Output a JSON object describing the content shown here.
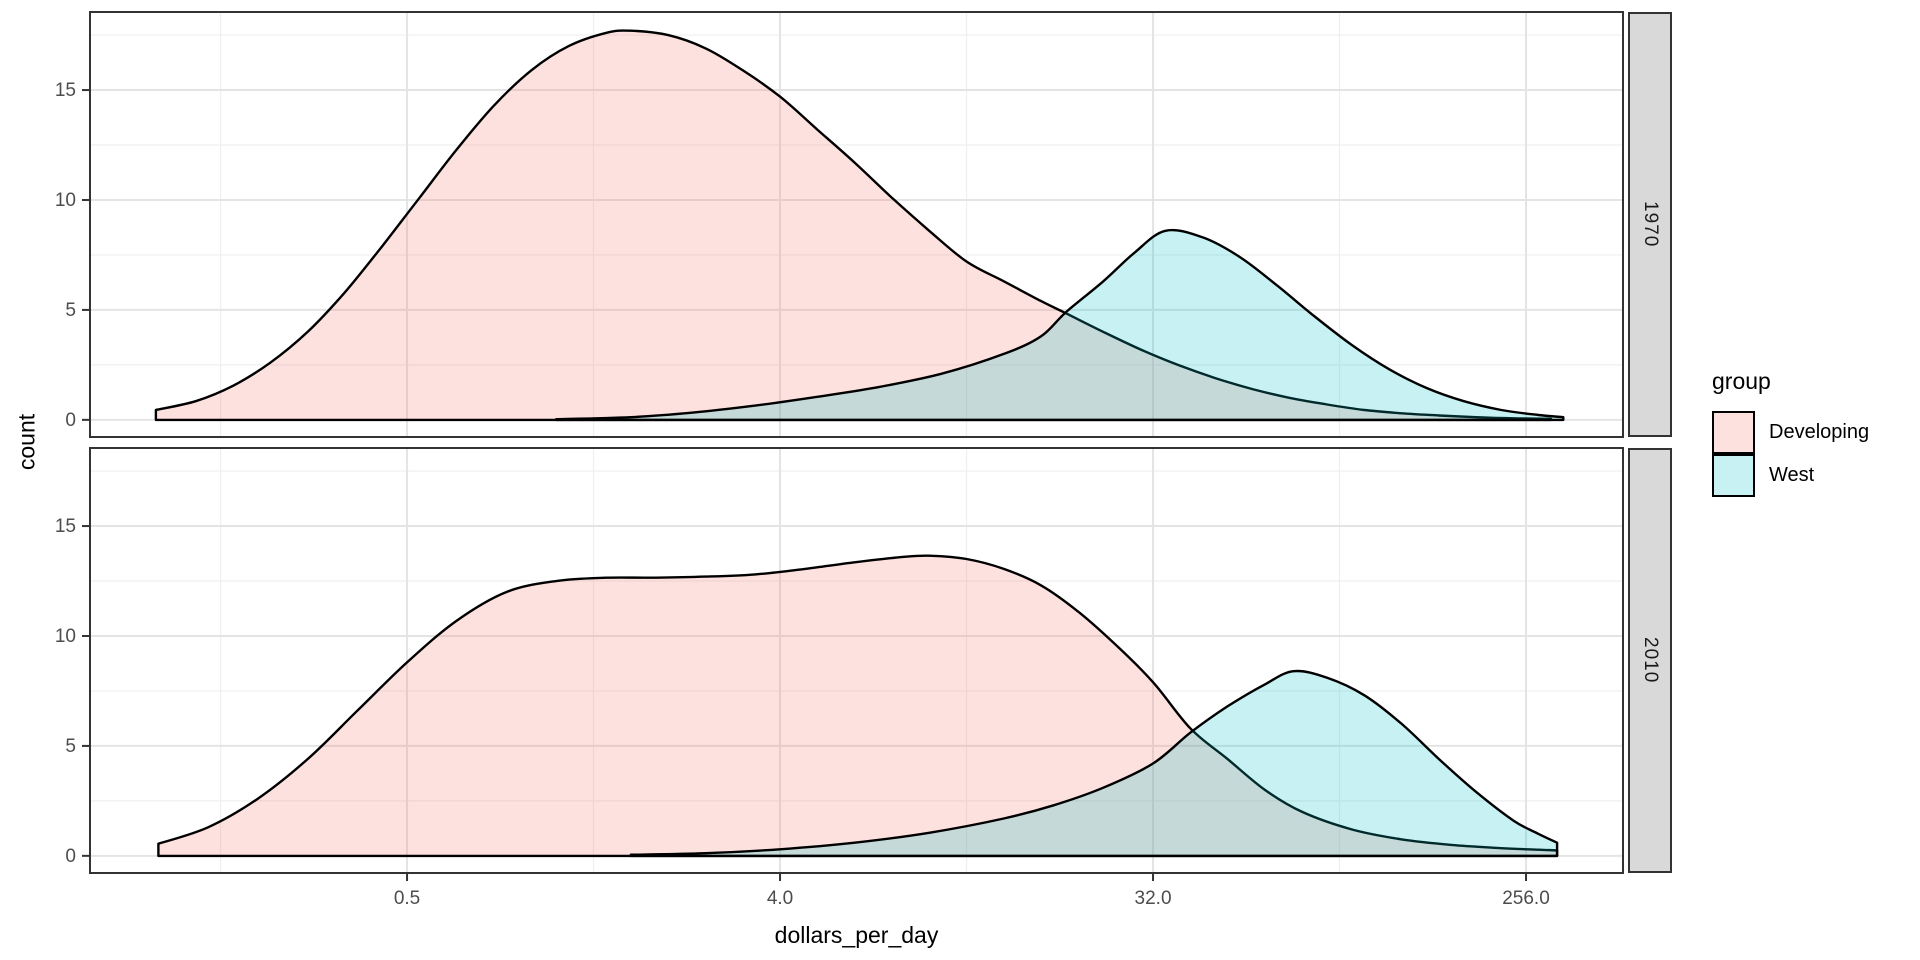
{
  "chart_data": {
    "type": "area",
    "subtype": "faceted-density",
    "title": "",
    "xlabel": "dollars_per_day",
    "ylabel": "count",
    "x_scale": "log2",
    "x_domain_log2": [
      -3.55,
      8.78
    ],
    "y_domain": [
      -0.78,
      18.55
    ],
    "grid": true,
    "x_ticks": [
      {
        "value": 0.5,
        "label": "0.5"
      },
      {
        "value": 4,
        "label": "4.0"
      },
      {
        "value": 32,
        "label": "32.0"
      },
      {
        "value": 256,
        "label": "256.0"
      }
    ],
    "x_minor_ticks_log2": [
      -2.5,
      0.5,
      3.5,
      6.5
    ],
    "y_ticks": [
      {
        "value": 0,
        "label": "0"
      },
      {
        "value": 5,
        "label": "5"
      },
      {
        "value": 10,
        "label": "10"
      },
      {
        "value": 15,
        "label": "15"
      }
    ],
    "y_minor_ticks": [
      2.5,
      7.5,
      12.5,
      17.5
    ],
    "legend": {
      "title": "group",
      "position": "right",
      "entries": [
        {
          "label": "Developing",
          "color": "#F8766D"
        },
        {
          "label": "West",
          "color": "#00BFC4"
        }
      ]
    },
    "facets": [
      {
        "label": "1970",
        "series": [
          {
            "name": "Developing",
            "color": "#F8766D",
            "points_log2x_count": [
              [
                -3.02,
                0.45
              ],
              [
                -2.7,
                0.85
              ],
              [
                -2.4,
                1.55
              ],
              [
                -2.1,
                2.6
              ],
              [
                -1.8,
                4.0
              ],
              [
                -1.5,
                5.8
              ],
              [
                -1.2,
                7.9
              ],
              [
                -0.9,
                10.1
              ],
              [
                -0.6,
                12.3
              ],
              [
                -0.3,
                14.3
              ],
              [
                0.0,
                15.9
              ],
              [
                0.3,
                17.0
              ],
              [
                0.6,
                17.6
              ],
              [
                0.8,
                17.7
              ],
              [
                1.1,
                17.5
              ],
              [
                1.4,
                16.9
              ],
              [
                1.7,
                15.9
              ],
              [
                2.0,
                14.7
              ],
              [
                2.3,
                13.2
              ],
              [
                2.6,
                11.7
              ],
              [
                2.9,
                10.1
              ],
              [
                3.2,
                8.6
              ],
              [
                3.5,
                7.2
              ],
              [
                3.8,
                6.3
              ],
              [
                4.1,
                5.4
              ],
              [
                4.28,
                4.9
              ],
              [
                4.6,
                4.0
              ],
              [
                4.9,
                3.2
              ],
              [
                5.2,
                2.5
              ],
              [
                5.5,
                1.9
              ],
              [
                5.8,
                1.4
              ],
              [
                6.1,
                1.0
              ],
              [
                6.4,
                0.7
              ],
              [
                6.7,
                0.45
              ],
              [
                7.0,
                0.3
              ],
              [
                7.3,
                0.2
              ],
              [
                7.6,
                0.12
              ],
              [
                7.9,
                0.07
              ],
              [
                8.2,
                0.05
              ]
            ]
          },
          {
            "name": "West",
            "color": "#00BFC4",
            "points_log2x_count": [
              [
                0.2,
                0.03
              ],
              [
                0.8,
                0.12
              ],
              [
                1.3,
                0.33
              ],
              [
                1.8,
                0.65
              ],
              [
                2.3,
                1.05
              ],
              [
                2.8,
                1.5
              ],
              [
                3.3,
                2.1
              ],
              [
                3.8,
                3.0
              ],
              [
                4.1,
                3.8
              ],
              [
                4.3,
                4.9
              ],
              [
                4.6,
                6.3
              ],
              [
                4.85,
                7.6
              ],
              [
                5.1,
                8.6
              ],
              [
                5.4,
                8.3
              ],
              [
                5.7,
                7.4
              ],
              [
                6.0,
                6.1
              ],
              [
                6.3,
                4.7
              ],
              [
                6.6,
                3.4
              ],
              [
                6.9,
                2.3
              ],
              [
                7.2,
                1.45
              ],
              [
                7.5,
                0.85
              ],
              [
                7.8,
                0.45
              ],
              [
                8.1,
                0.22
              ],
              [
                8.3,
                0.12
              ]
            ]
          }
        ]
      },
      {
        "label": "2010",
        "series": [
          {
            "name": "Developing",
            "color": "#F8766D",
            "points_log2x_count": [
              [
                -3.0,
                0.55
              ],
              [
                -2.6,
                1.3
              ],
              [
                -2.2,
                2.6
              ],
              [
                -1.8,
                4.4
              ],
              [
                -1.4,
                6.6
              ],
              [
                -1.0,
                8.8
              ],
              [
                -0.6,
                10.7
              ],
              [
                -0.2,
                12.0
              ],
              [
                0.2,
                12.5
              ],
              [
                0.6,
                12.65
              ],
              [
                1.0,
                12.65
              ],
              [
                1.4,
                12.7
              ],
              [
                1.8,
                12.8
              ],
              [
                2.2,
                13.05
              ],
              [
                2.6,
                13.35
              ],
              [
                3.0,
                13.6
              ],
              [
                3.2,
                13.65
              ],
              [
                3.5,
                13.5
              ],
              [
                3.8,
                13.05
              ],
              [
                4.1,
                12.3
              ],
              [
                4.4,
                11.1
              ],
              [
                4.7,
                9.6
              ],
              [
                5.0,
                7.9
              ],
              [
                5.3,
                5.8
              ],
              [
                5.6,
                4.4
              ],
              [
                5.9,
                3.0
              ],
              [
                6.2,
                2.0
              ],
              [
                6.6,
                1.2
              ],
              [
                7.0,
                0.75
              ],
              [
                7.4,
                0.5
              ],
              [
                7.8,
                0.35
              ],
              [
                8.1,
                0.28
              ],
              [
                8.25,
                0.25
              ]
            ]
          },
          {
            "name": "West",
            "color": "#00BFC4",
            "points_log2x_count": [
              [
                0.8,
                0.05
              ],
              [
                1.4,
                0.12
              ],
              [
                2.0,
                0.3
              ],
              [
                2.6,
                0.6
              ],
              [
                3.2,
                1.05
              ],
              [
                3.8,
                1.7
              ],
              [
                4.2,
                2.3
              ],
              [
                4.6,
                3.1
              ],
              [
                5.0,
                4.2
              ],
              [
                5.3,
                5.6
              ],
              [
                5.6,
                6.8
              ],
              [
                5.9,
                7.8
              ],
              [
                6.13,
                8.4
              ],
              [
                6.4,
                8.1
              ],
              [
                6.7,
                7.3
              ],
              [
                7.0,
                6.0
              ],
              [
                7.3,
                4.4
              ],
              [
                7.6,
                2.9
              ],
              [
                7.9,
                1.6
              ],
              [
                8.1,
                1.0
              ],
              [
                8.25,
                0.6
              ]
            ]
          }
        ]
      }
    ],
    "style": {
      "fill_alpha": 0.22,
      "curve_stroke": "#000000",
      "curve_stroke_width": 2.4,
      "grid_major_color": "#E4E4E4",
      "grid_minor_color": "#EFEFEF",
      "panel_border_color": "#333333",
      "panel_bg": "#FFFFFF",
      "strip_bg": "#D9D9D9",
      "strip_text_color": "#1A1A1A",
      "tick_color": "#333333",
      "tick_label_color": "#4D4D4D",
      "axis_title_color": "#000000"
    }
  }
}
